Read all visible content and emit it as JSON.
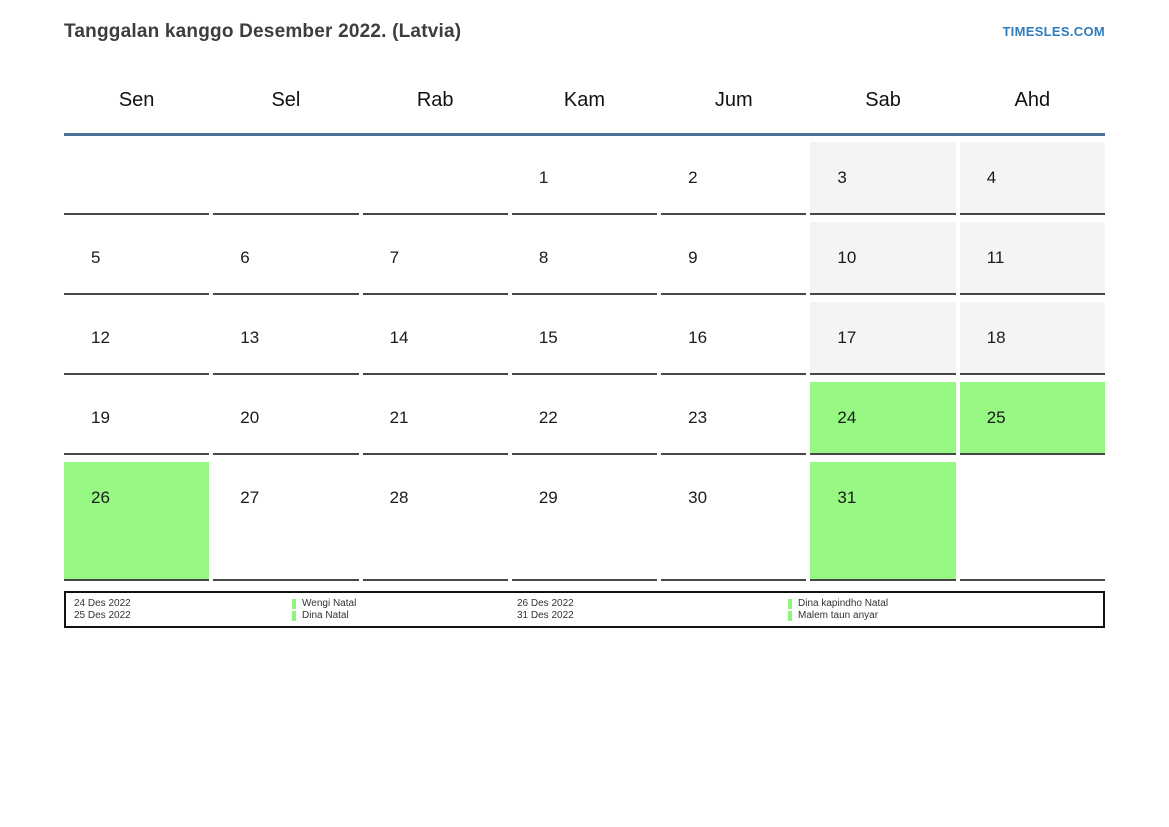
{
  "header": {
    "title": "Tanggalan kanggo Desember 2022. (Latvia)",
    "site_link": "TIMESLES.COM"
  },
  "calendar": {
    "month": "Desember 2022",
    "weekdays": [
      "Sen",
      "Sel",
      "Rab",
      "Kam",
      "Jum",
      "Sab",
      "Ahd"
    ],
    "weeks": [
      [
        {
          "day": "",
          "type": "empty"
        },
        {
          "day": "",
          "type": "empty"
        },
        {
          "day": "",
          "type": "empty"
        },
        {
          "day": "1",
          "type": "normal"
        },
        {
          "day": "2",
          "type": "normal"
        },
        {
          "day": "3",
          "type": "weekend"
        },
        {
          "day": "4",
          "type": "weekend"
        }
      ],
      [
        {
          "day": "5",
          "type": "normal"
        },
        {
          "day": "6",
          "type": "normal"
        },
        {
          "day": "7",
          "type": "normal"
        },
        {
          "day": "8",
          "type": "normal"
        },
        {
          "day": "9",
          "type": "normal"
        },
        {
          "day": "10",
          "type": "weekend"
        },
        {
          "day": "11",
          "type": "weekend"
        }
      ],
      [
        {
          "day": "12",
          "type": "normal"
        },
        {
          "day": "13",
          "type": "normal"
        },
        {
          "day": "14",
          "type": "normal"
        },
        {
          "day": "15",
          "type": "normal"
        },
        {
          "day": "16",
          "type": "normal"
        },
        {
          "day": "17",
          "type": "weekend"
        },
        {
          "day": "18",
          "type": "weekend"
        }
      ],
      [
        {
          "day": "19",
          "type": "normal"
        },
        {
          "day": "20",
          "type": "normal"
        },
        {
          "day": "21",
          "type": "normal"
        },
        {
          "day": "22",
          "type": "normal"
        },
        {
          "day": "23",
          "type": "normal"
        },
        {
          "day": "24",
          "type": "holiday"
        },
        {
          "day": "25",
          "type": "holiday"
        }
      ],
      [
        {
          "day": "26",
          "type": "holiday"
        },
        {
          "day": "27",
          "type": "normal"
        },
        {
          "day": "28",
          "type": "normal"
        },
        {
          "day": "29",
          "type": "normal"
        },
        {
          "day": "30",
          "type": "normal"
        },
        {
          "day": "31",
          "type": "holiday"
        },
        {
          "day": "",
          "type": "empty"
        }
      ]
    ]
  },
  "legend": {
    "columns": [
      {
        "marker": false,
        "lines": [
          "24 Des 2022",
          "25 Des 2022"
        ]
      },
      {
        "marker": true,
        "lines": [
          "Wengi Natal",
          "Dina Natal"
        ]
      },
      {
        "marker": false,
        "lines": [
          "26 Des 2022",
          "31 Des 2022"
        ]
      },
      {
        "marker": true,
        "lines": [
          "Dina kapindho Natal",
          "Malem taun anyar"
        ]
      }
    ]
  },
  "colors": {
    "accent_blue": "#4e7096",
    "link_blue": "#2d7dbf",
    "weekend_gray": "#f4f4f4",
    "holiday_green": "#97f884",
    "marker_green": "#90f57c"
  }
}
